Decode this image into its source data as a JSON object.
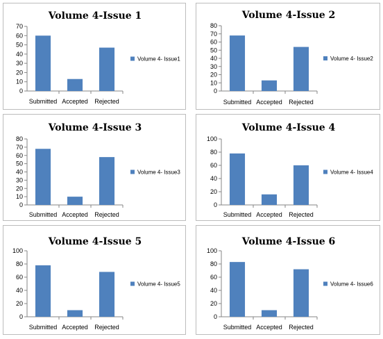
{
  "chart_data": [
    {
      "type": "bar",
      "title": "Volume 4-Issue 1",
      "categories": [
        "Submitted",
        "Accepted",
        "Rejected"
      ],
      "series": [
        {
          "name": "Volume 4- Issue1",
          "values": [
            60,
            13,
            47
          ]
        }
      ],
      "ylim": [
        0,
        70
      ],
      "yticks": [
        0,
        10,
        20,
        30,
        40,
        50,
        60,
        70
      ],
      "grid": false,
      "legend": "right",
      "color": "#4f81bd"
    },
    {
      "type": "bar",
      "title": "Volume 4-Issue 2",
      "categories": [
        "Submitted",
        "Accepted",
        "Rejected"
      ],
      "series": [
        {
          "name": "Volume 4- Issue2",
          "values": [
            68,
            13,
            54
          ]
        }
      ],
      "ylim": [
        0,
        80
      ],
      "yticks": [
        0,
        10,
        20,
        30,
        40,
        50,
        60,
        70,
        80
      ],
      "grid": false,
      "legend": "right",
      "color": "#4f81bd"
    },
    {
      "type": "bar",
      "title": "Volume 4-Issue 3",
      "categories": [
        "Submitted",
        "Accepted",
        "Rejected"
      ],
      "series": [
        {
          "name": "Volume 4- Issue3",
          "values": [
            68,
            10,
            58
          ]
        }
      ],
      "ylim": [
        0,
        80
      ],
      "yticks": [
        0,
        10,
        20,
        30,
        40,
        50,
        60,
        70,
        80
      ],
      "grid": false,
      "legend": "right",
      "color": "#4f81bd"
    },
    {
      "type": "bar",
      "title": "Volume 4-Issue 4",
      "categories": [
        "Submitted",
        "Accepted",
        "Rejected"
      ],
      "series": [
        {
          "name": "Volume 4- Issue4",
          "values": [
            78,
            16,
            60
          ]
        }
      ],
      "ylim": [
        0,
        100
      ],
      "yticks": [
        0,
        20,
        40,
        60,
        80,
        100
      ],
      "grid": false,
      "legend": "right",
      "color": "#4f81bd"
    },
    {
      "type": "bar",
      "title": "Volume 4-Issue 5",
      "categories": [
        "Submitted",
        "Accepted",
        "Rejected"
      ],
      "series": [
        {
          "name": "Volume 4- Issue5",
          "values": [
            78,
            10,
            68
          ]
        }
      ],
      "ylim": [
        0,
        100
      ],
      "yticks": [
        0,
        20,
        40,
        60,
        80,
        100
      ],
      "grid": false,
      "legend": "right",
      "color": "#4f81bd"
    },
    {
      "type": "bar",
      "title": "Volume 4-Issue 6",
      "categories": [
        "Submitted",
        "Accepted",
        "Rejected"
      ],
      "series": [
        {
          "name": "Volume 4- Issue6",
          "values": [
            83,
            10,
            72
          ]
        }
      ],
      "ylim": [
        0,
        100
      ],
      "yticks": [
        0,
        20,
        40,
        60,
        80,
        100
      ],
      "grid": false,
      "legend": "right",
      "color": "#4f81bd"
    }
  ]
}
